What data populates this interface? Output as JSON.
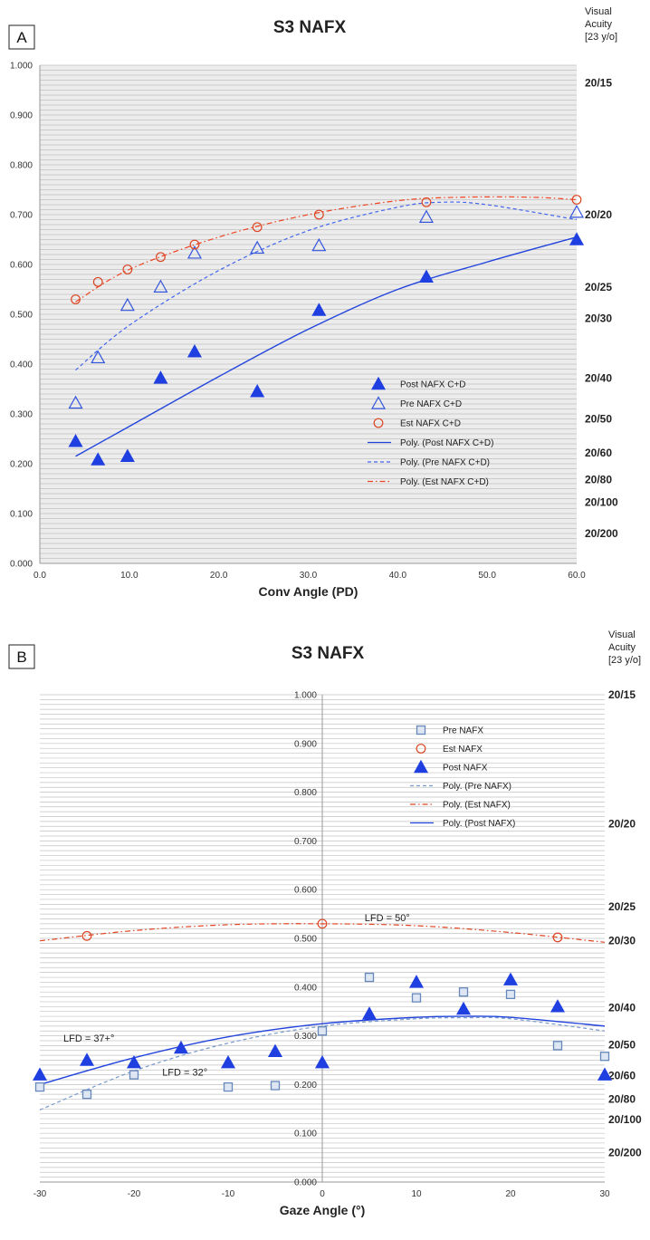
{
  "chart_data": [
    {
      "type": "scatter",
      "panel_label": "A",
      "title": "S3 NAFX",
      "xlabel": "Conv Angle (PD)",
      "ylabel": "",
      "xlim": [
        0,
        60
      ],
      "ylim": [
        0,
        1.0
      ],
      "x_ticks": [
        "0.0",
        "10.0",
        "20.0",
        "30.0",
        "40.0",
        "50.0",
        "60.0"
      ],
      "y_ticks": [
        "0.000",
        "0.100",
        "0.200",
        "0.300",
        "0.400",
        "0.500",
        "0.600",
        "0.700",
        "0.800",
        "0.900",
        "1.000"
      ],
      "grid": true,
      "legend_position": "center-right",
      "right_axis_title": [
        "Visual",
        "Acuity",
        "[23 y/o]"
      ],
      "right_axis_labels": [
        {
          "text": "20/15",
          "y": 0.965
        },
        {
          "text": "20/20",
          "y": 0.7
        },
        {
          "text": "20/25",
          "y": 0.555
        },
        {
          "text": "20/30",
          "y": 0.492
        },
        {
          "text": "20/40",
          "y": 0.372
        },
        {
          "text": "20/50",
          "y": 0.29
        },
        {
          "text": "20/60",
          "y": 0.222
        },
        {
          "text": "20/80",
          "y": 0.168
        },
        {
          "text": "20/100",
          "y": 0.123
        },
        {
          "text": "20/200",
          "y": 0.06
        }
      ],
      "series": [
        {
          "name": "Post NAFX C+D",
          "marker": "filled-triangle",
          "color": "#1f3fe0",
          "x": [
            4,
            6.5,
            9.8,
            13.5,
            17.3,
            24.3,
            31.2,
            43.2,
            60
          ],
          "y": [
            0.245,
            0.208,
            0.215,
            0.372,
            0.425,
            0.345,
            0.508,
            0.575,
            0.65
          ]
        },
        {
          "name": "Pre NAFX C+D",
          "marker": "open-triangle",
          "color": "#3355dd",
          "x": [
            4,
            6.5,
            9.8,
            13.5,
            17.3,
            24.3,
            31.2,
            43.2,
            60
          ],
          "y": [
            0.322,
            0.413,
            0.518,
            0.555,
            0.623,
            0.633,
            0.638,
            0.695,
            0.705
          ]
        },
        {
          "name": "Est NAFX C+D",
          "marker": "open-circle",
          "color": "#dd4422",
          "x": [
            4,
            6.5,
            9.8,
            13.5,
            17.3,
            24.3,
            31.2,
            43.2,
            60
          ],
          "y": [
            0.53,
            0.565,
            0.59,
            0.615,
            0.64,
            0.675,
            0.7,
            0.725,
            0.73
          ]
        },
        {
          "name": "Poly. (Post NAFX C+D)",
          "line": "solid",
          "color": "#2244dd",
          "x": [
            4,
            10,
            20,
            30,
            40,
            50,
            60
          ],
          "y": [
            0.215,
            0.275,
            0.375,
            0.47,
            0.55,
            0.605,
            0.655
          ]
        },
        {
          "name": "Poly. (Pre NAFX C+D)",
          "line": "dashed",
          "color": "#4466ee",
          "x": [
            4,
            10,
            20,
            30,
            40,
            45,
            50,
            60
          ],
          "y": [
            0.388,
            0.478,
            0.588,
            0.668,
            0.715,
            0.725,
            0.72,
            0.69
          ]
        },
        {
          "name": "Poly. (Est NAFX C+D)",
          "line": "dashdot",
          "color": "#ee4422",
          "x": [
            4,
            10,
            20,
            30,
            40,
            47,
            55,
            60
          ],
          "y": [
            0.525,
            0.59,
            0.655,
            0.7,
            0.728,
            0.735,
            0.735,
            0.73
          ]
        }
      ]
    },
    {
      "type": "scatter",
      "panel_label": "B",
      "title": "S3 NAFX",
      "xlabel": "Gaze Angle (°)",
      "ylabel": "",
      "xlim": [
        -30,
        30
      ],
      "ylim": [
        0,
        1.0
      ],
      "x_ticks": [
        "-30",
        "-20",
        "-10",
        "0",
        "10",
        "20",
        "30"
      ],
      "y_ticks": [
        "0.000",
        "0.100",
        "0.200",
        "0.300",
        "0.400",
        "0.500",
        "0.600",
        "0.700",
        "0.800",
        "0.900",
        "1.000"
      ],
      "grid": true,
      "legend_position": "top-center",
      "right_axis_title": [
        "Visual",
        "Acuity",
        "[23 y/o]"
      ],
      "right_axis_labels": [
        {
          "text": "20/15",
          "y": 1.0
        },
        {
          "text": "20/20",
          "y": 0.735
        },
        {
          "text": "20/25",
          "y": 0.565
        },
        {
          "text": "20/30",
          "y": 0.495
        },
        {
          "text": "20/40",
          "y": 0.358
        },
        {
          "text": "20/50",
          "y": 0.282
        },
        {
          "text": "20/60",
          "y": 0.218
        },
        {
          "text": "20/80",
          "y": 0.17
        },
        {
          "text": "20/100",
          "y": 0.128
        },
        {
          "text": "20/200",
          "y": 0.06
        }
      ],
      "annotations": [
        {
          "text": "LFD = 50°",
          "x": 4.5,
          "y": 0.535,
          "color": "#e03a20"
        },
        {
          "text": "LFD = 37+°",
          "x": -27.5,
          "y": 0.288,
          "color": "#1f3fe0"
        },
        {
          "text": "LFD = 32°",
          "x": -17,
          "y": 0.218,
          "color": "#5577dd"
        }
      ],
      "series": [
        {
          "name": "Pre NAFX",
          "marker": "open-square",
          "color": "#6688bb",
          "x": [
            -30,
            -25,
            -20,
            -10,
            -5,
            0,
            5,
            10,
            15,
            20,
            25,
            30
          ],
          "y": [
            0.195,
            0.18,
            0.22,
            0.195,
            0.198,
            0.31,
            0.42,
            0.378,
            0.39,
            0.385,
            0.28,
            0.258
          ]
        },
        {
          "name": "Est NAFX",
          "marker": "open-circle",
          "color": "#dd4422",
          "x": [
            -25,
            0,
            25
          ],
          "y": [
            0.505,
            0.53,
            0.502
          ]
        },
        {
          "name": "Post NAFX",
          "marker": "filled-triangle",
          "color": "#1f3fe0",
          "x": [
            -30,
            -25,
            -20,
            -15,
            -10,
            -5,
            0,
            5,
            10,
            15,
            20,
            25,
            30
          ],
          "y": [
            0.22,
            0.25,
            0.245,
            0.275,
            0.245,
            0.268,
            0.245,
            0.345,
            0.41,
            0.355,
            0.415,
            0.36,
            0.22
          ]
        },
        {
          "name": "Poly. (Pre NAFX)",
          "line": "dashed",
          "color": "#7799cc",
          "x": [
            -30,
            -20,
            -10,
            0,
            10,
            15,
            20,
            30
          ],
          "y": [
            0.148,
            0.228,
            0.285,
            0.32,
            0.335,
            0.337,
            0.335,
            0.31
          ]
        },
        {
          "name": "Poly. (Est NAFX)",
          "line": "dashdot",
          "color": "#e04422",
          "x": [
            -30,
            -20,
            -10,
            0,
            10,
            20,
            30
          ],
          "y": [
            0.495,
            0.516,
            0.528,
            0.53,
            0.526,
            0.512,
            0.492
          ]
        },
        {
          "name": "Poly. (Post NAFX)",
          "line": "solid",
          "color": "#2244dd",
          "x": [
            -30,
            -20,
            -10,
            0,
            10,
            15,
            20,
            30
          ],
          "y": [
            0.2,
            0.255,
            0.298,
            0.325,
            0.338,
            0.34,
            0.338,
            0.32
          ]
        }
      ]
    }
  ]
}
